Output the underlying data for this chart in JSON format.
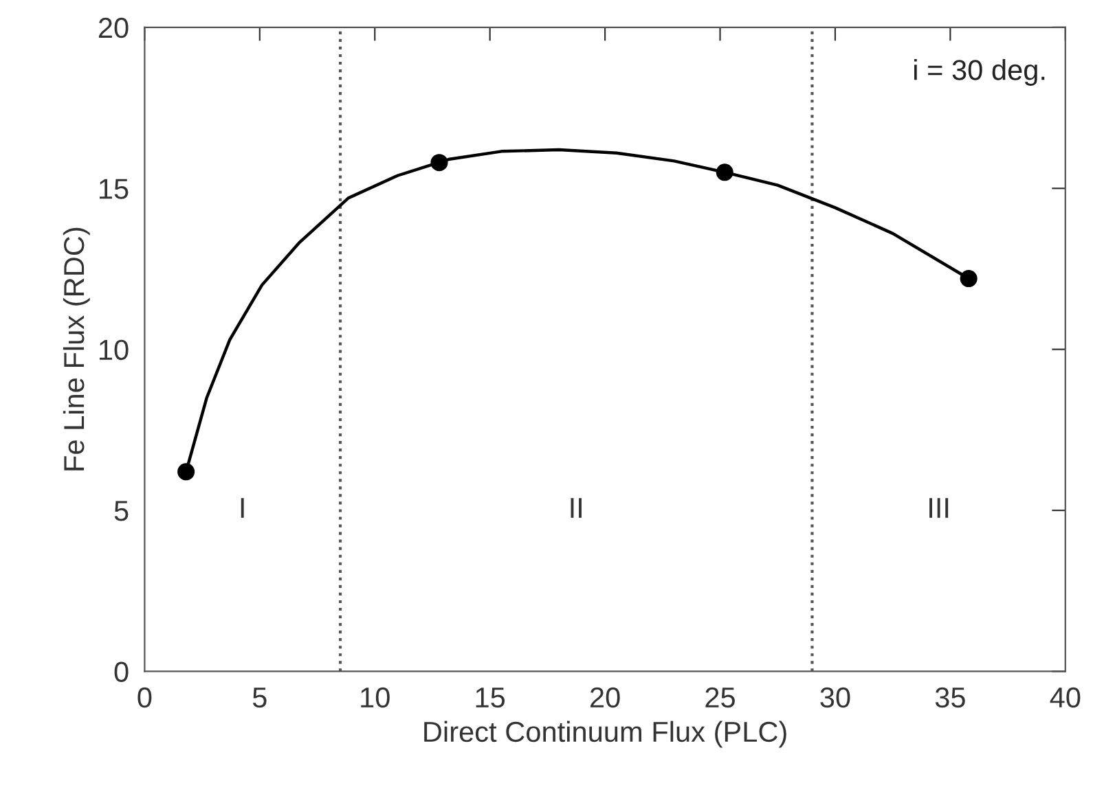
{
  "chart_data": {
    "type": "scatter",
    "xlabel": "Direct Continuum Flux (PLC)",
    "ylabel": "Fe Line Flux (RDC)",
    "xlim": [
      0,
      40
    ],
    "ylim": [
      0,
      20
    ],
    "xticks": [
      0,
      5,
      10,
      15,
      20,
      25,
      30,
      35,
      40
    ],
    "yticks": [
      0,
      5,
      10,
      15,
      20
    ],
    "grid": false,
    "legend": false,
    "series": [
      {
        "type": "line",
        "color": "#000000",
        "marker": "none",
        "line_style": "solid",
        "x": [
          1.8,
          2.7,
          3.7,
          5.1,
          6.7,
          8.85,
          11,
          13.2,
          15.5,
          18,
          20.5,
          23,
          25.2,
          27.5,
          30,
          32.5,
          35.8
        ],
        "values": [
          6.2,
          8.5,
          10.3,
          12.0,
          13.3,
          14.7,
          15.4,
          15.9,
          16.15,
          16.2,
          16.1,
          15.85,
          15.5,
          15.1,
          14.4,
          13.6,
          12.2
        ]
      },
      {
        "color": "#000000",
        "marker": "circle",
        "x": [
          1.8,
          12.8,
          25.2,
          35.8
        ],
        "values": [
          6.2,
          15.8,
          15.5,
          12.2
        ]
      }
    ],
    "ref_lines": [
      {
        "axis": "x",
        "value": 8.5,
        "color": "#555555",
        "line_style": "dotted"
      },
      {
        "axis": "x",
        "value": 29.0,
        "color": "#555555",
        "line_style": "dotted"
      }
    ],
    "annotations": [
      "i = 30 deg.",
      "I",
      "II",
      "III"
    ]
  }
}
